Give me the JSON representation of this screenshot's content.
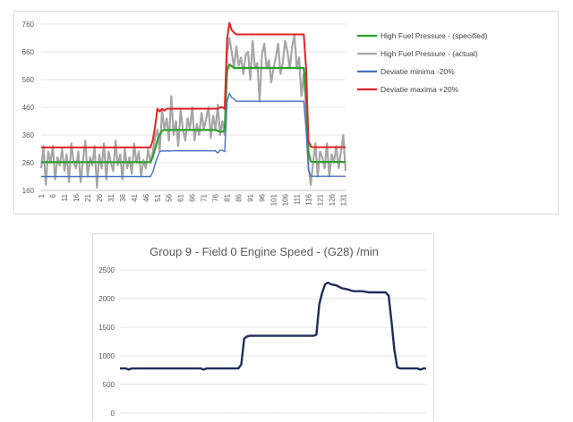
{
  "chart_data": [
    {
      "type": "line",
      "title": "",
      "xlabel": "",
      "ylabel": "",
      "x": [
        1,
        2,
        3,
        4,
        5,
        6,
        7,
        8,
        9,
        10,
        11,
        12,
        13,
        14,
        15,
        16,
        17,
        18,
        19,
        20,
        21,
        22,
        23,
        24,
        25,
        26,
        27,
        28,
        29,
        30,
        31,
        32,
        33,
        34,
        35,
        36,
        37,
        38,
        39,
        40,
        41,
        42,
        43,
        44,
        45,
        46,
        47,
        48,
        49,
        50,
        51,
        52,
        53,
        54,
        55,
        56,
        57,
        58,
        59,
        60,
        61,
        62,
        63,
        64,
        65,
        66,
        67,
        68,
        69,
        70,
        71,
        72,
        73,
        74,
        75,
        76,
        77,
        78,
        79,
        80,
        81,
        82,
        83,
        84,
        85,
        86,
        87,
        88,
        89,
        90,
        91,
        92,
        93,
        94,
        95,
        96,
        97,
        98,
        99,
        100,
        101,
        102,
        103,
        104,
        105,
        106,
        107,
        108,
        109,
        110,
        111,
        112,
        113,
        114,
        115,
        116,
        117,
        118,
        119,
        120,
        121,
        122,
        123,
        124,
        125,
        126,
        127,
        128,
        129,
        130,
        131,
        132
      ],
      "x_tick_labels": [
        "1",
        "6",
        "11",
        "16",
        "21",
        "26",
        "31",
        "36",
        "41",
        "46",
        "51",
        "56",
        "61",
        "66",
        "71",
        "76",
        "81",
        "86",
        "91",
        "96",
        "101",
        "106",
        "111",
        "116",
        "121",
        "126",
        "131"
      ],
      "ylim": [
        160,
        760
      ],
      "y_ticks": [
        160,
        260,
        360,
        460,
        560,
        660,
        760
      ],
      "grid": "horizontal",
      "legend_position": "right",
      "series": [
        {
          "name": "High Fuel Pressure - (specified)",
          "color": "#2ca02c",
          "width": 2.2,
          "values": [
            262,
            262,
            262,
            262,
            262,
            262,
            262,
            262,
            262,
            262,
            262,
            262,
            262,
            262,
            262,
            262,
            262,
            262,
            262,
            262,
            262,
            262,
            262,
            262,
            262,
            262,
            262,
            262,
            262,
            262,
            262,
            262,
            262,
            262,
            262,
            262,
            262,
            262,
            262,
            262,
            262,
            262,
            262,
            262,
            262,
            262,
            262,
            262,
            280,
            310,
            340,
            362,
            375,
            378,
            378,
            378,
            378,
            378,
            378,
            378,
            378,
            378,
            378,
            378,
            378,
            378,
            378,
            378,
            378,
            378,
            378,
            378,
            378,
            378,
            378,
            378,
            375,
            372,
            372,
            378,
            590,
            615,
            608,
            602,
            602,
            602,
            602,
            602,
            602,
            602,
            602,
            602,
            602,
            602,
            602,
            602,
            602,
            602,
            602,
            602,
            602,
            602,
            602,
            602,
            602,
            602,
            602,
            602,
            602,
            602,
            602,
            602,
            602,
            602,
            500,
            300,
            265,
            263,
            263,
            263,
            263,
            263,
            263,
            263,
            263,
            263,
            263,
            263,
            263,
            263,
            263,
            263
          ]
        },
        {
          "name": "High Fuel Pressure - (actual)",
          "color": "#a6a6a6",
          "width": 2.2,
          "values": [
            240,
            320,
            180,
            300,
            260,
            320,
            200,
            280,
            250,
            310,
            230,
            290,
            190,
            330,
            260,
            240,
            300,
            190,
            270,
            340,
            210,
            280,
            250,
            320,
            170,
            290,
            240,
            330,
            200,
            300,
            260,
            230,
            340,
            250,
            290,
            200,
            310,
            240,
            280,
            220,
            330,
            260,
            300,
            210,
            270,
            240,
            310,
            260,
            300,
            350,
            380,
            300,
            450,
            380,
            420,
            340,
            500,
            360,
            410,
            320,
            450,
            380,
            340,
            420,
            380,
            460,
            340,
            400,
            360,
            440,
            380,
            420,
            460,
            350,
            430,
            380,
            470,
            360,
            410,
            360,
            650,
            710,
            660,
            600,
            680,
            610,
            640,
            580,
            650,
            660,
            560,
            700,
            600,
            620,
            480,
            650,
            690,
            600,
            630,
            550,
            600,
            640,
            690,
            580,
            620,
            700,
            660,
            600,
            680,
            720,
            600,
            640,
            500,
            580,
            450,
            250,
            180,
            260,
            330,
            210,
            300,
            280,
            240,
            330,
            210,
            290,
            260,
            320,
            240,
            300,
            360,
            230
          ]
        },
        {
          "name": "Deviatie minima -20%",
          "color": "#4472c4",
          "width": 1.4,
          "values": [
            210,
            210,
            210,
            210,
            210,
            210,
            210,
            210,
            210,
            210,
            210,
            210,
            210,
            210,
            210,
            210,
            210,
            210,
            210,
            210,
            210,
            210,
            210,
            210,
            210,
            210,
            210,
            210,
            210,
            210,
            210,
            210,
            210,
            210,
            210,
            210,
            210,
            210,
            210,
            210,
            210,
            210,
            210,
            210,
            210,
            210,
            210,
            210,
            225,
            255,
            280,
            300,
            303,
            302,
            303,
            302,
            303,
            303,
            303,
            303,
            303,
            303,
            303,
            303,
            303,
            303,
            303,
            303,
            303,
            303,
            303,
            303,
            303,
            303,
            303,
            303,
            295,
            305,
            305,
            300,
            480,
            510,
            495,
            490,
            482,
            482,
            482,
            482,
            482,
            482,
            482,
            482,
            482,
            482,
            482,
            482,
            482,
            482,
            482,
            482,
            482,
            482,
            482,
            482,
            482,
            482,
            482,
            482,
            482,
            482,
            482,
            482,
            482,
            482,
            380,
            235,
            212,
            211,
            211,
            211,
            211,
            211,
            211,
            211,
            211,
            211,
            211,
            211,
            211,
            211,
            211,
            211
          ]
        },
        {
          "name": "Deviatie maxima +20%",
          "color": "#e02424",
          "width": 2.0,
          "values": [
            315,
            315,
            315,
            315,
            315,
            315,
            315,
            315,
            315,
            315,
            315,
            315,
            315,
            315,
            315,
            315,
            315,
            315,
            315,
            315,
            315,
            315,
            315,
            315,
            315,
            315,
            315,
            315,
            315,
            315,
            315,
            315,
            315,
            315,
            315,
            315,
            315,
            315,
            315,
            315,
            315,
            315,
            315,
            315,
            315,
            315,
            315,
            315,
            340,
            390,
            455,
            445,
            455,
            448,
            455,
            455,
            455,
            455,
            455,
            455,
            455,
            455,
            455,
            455,
            455,
            455,
            455,
            455,
            455,
            455,
            455,
            455,
            455,
            455,
            455,
            455,
            455,
            460,
            460,
            455,
            705,
            765,
            738,
            730,
            723,
            723,
            723,
            723,
            723,
            723,
            723,
            723,
            723,
            723,
            723,
            723,
            723,
            723,
            723,
            723,
            723,
            723,
            723,
            723,
            723,
            723,
            723,
            723,
            723,
            723,
            723,
            723,
            723,
            723,
            600,
            340,
            318,
            316,
            316,
            316,
            316,
            316,
            316,
            316,
            316,
            316,
            316,
            316,
            316,
            316,
            316,
            316
          ]
        }
      ]
    },
    {
      "type": "line",
      "title": "Group 9 - Field 0 Engine Speed - (G28)  /min",
      "xlabel": "",
      "ylabel": "",
      "ylim": [
        0,
        2500
      ],
      "y_ticks": [
        0,
        500,
        1000,
        1500,
        2000,
        2500
      ],
      "grid": "horizontal",
      "series": [
        {
          "name": "",
          "color": "#1f2d5c",
          "width": 2.4,
          "values": [
            780,
            780,
            780,
            760,
            780,
            780,
            780,
            780,
            780,
            780,
            780,
            780,
            780,
            780,
            780,
            780,
            780,
            780,
            780,
            780,
            780,
            780,
            780,
            780,
            780,
            780,
            780,
            780,
            780,
            760,
            780,
            780,
            780,
            780,
            780,
            780,
            780,
            780,
            780,
            780,
            780,
            780,
            850,
            1300,
            1340,
            1350,
            1350,
            1350,
            1350,
            1350,
            1350,
            1350,
            1350,
            1350,
            1350,
            1350,
            1350,
            1350,
            1350,
            1350,
            1350,
            1350,
            1350,
            1350,
            1350,
            1350,
            1350,
            1350,
            1370,
            1900,
            2100,
            2250,
            2280,
            2250,
            2240,
            2230,
            2200,
            2180,
            2170,
            2160,
            2140,
            2130,
            2130,
            2130,
            2130,
            2120,
            2110,
            2110,
            2110,
            2110,
            2110,
            2110,
            2110,
            2050,
            1600,
            1100,
            800,
            780,
            780,
            780,
            780,
            780,
            780,
            780,
            760,
            780,
            780
          ]
        }
      ]
    }
  ]
}
